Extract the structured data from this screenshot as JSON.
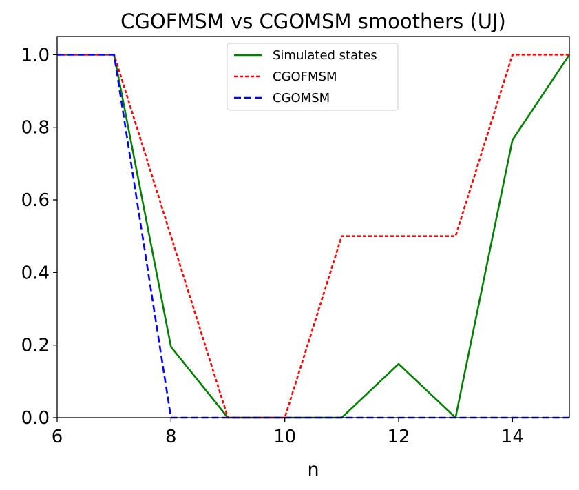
{
  "chart_data": {
    "type": "line",
    "title": "CGOFMSM vs CGOMSM smoothers (UJ)",
    "xlabel": "n",
    "ylabel": "",
    "xlim": [
      6,
      15
    ],
    "ylim": [
      0,
      1.05
    ],
    "xticks": [
      6,
      8,
      10,
      12,
      14
    ],
    "yticks": [
      0.0,
      0.2,
      0.4,
      0.6,
      0.8,
      1.0
    ],
    "xtick_labels": [
      "6",
      "8",
      "10",
      "12",
      "14"
    ],
    "ytick_labels": [
      "0.0",
      "0.2",
      "0.4",
      "0.6",
      "0.8",
      "1.0"
    ],
    "grid": false,
    "legend_position": "top-center",
    "x": [
      6,
      7,
      8,
      9,
      10,
      11,
      12,
      13,
      14,
      15
    ],
    "series": [
      {
        "name": "Simulated states",
        "color": "#008000",
        "style": "solid",
        "values": [
          1.0,
          1.0,
          0.195,
          0.0,
          0.0,
          0.0,
          0.148,
          0.0,
          0.765,
          1.0
        ]
      },
      {
        "name": "CGOFMSM",
        "color": "#ff0000",
        "style": "dotted",
        "values": [
          1.0,
          1.0,
          0.5,
          0.0,
          0.0,
          0.5,
          0.5,
          0.5,
          1.0,
          1.0
        ]
      },
      {
        "name": "CGOMSM",
        "color": "#0000ff",
        "style": "dashed",
        "values": [
          1.0,
          1.0,
          0.0,
          0.0,
          0.0,
          0.0,
          0.0,
          0.0,
          0.0,
          0.0
        ]
      }
    ]
  }
}
